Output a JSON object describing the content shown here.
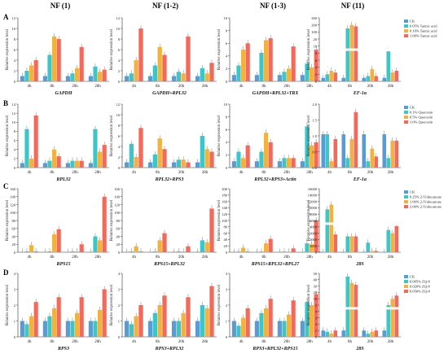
{
  "column_headers": [
    "NF (1)",
    "NF (1-2)",
    "NF (1-3)",
    "NF (11)"
  ],
  "row_labels": [
    "A",
    "B",
    "C",
    "D"
  ],
  "colors": [
    "#5b9bd5",
    "#3ec5c9",
    "#f0b240",
    "#f26a5b"
  ],
  "chart_data": [
    {
      "type": "bar",
      "row": 0,
      "col": 0,
      "xlabel": "GAPDH",
      "ylabel": "Relative expression level",
      "categories": [
        "4h",
        "8h",
        "20h",
        "28h"
      ],
      "ylim": [
        0,
        12
      ],
      "yticks": [
        0,
        2,
        4,
        6,
        8,
        10,
        12
      ],
      "series": [
        {
          "values": [
            1,
            1,
            1,
            1
          ]
        },
        {
          "values": [
            2,
            5,
            1.5,
            2.8
          ]
        },
        {
          "values": [
            3,
            8.5,
            2.5,
            1.8
          ]
        },
        {
          "values": [
            4,
            8,
            6.5,
            2.2
          ]
        }
      ]
    },
    {
      "type": "bar",
      "row": 0,
      "col": 1,
      "xlabel": "GAPDH+RPL32",
      "ylabel": "Relative expression level",
      "categories": [
        "4h",
        "8h",
        "20h",
        "28h"
      ],
      "ylim": [
        0,
        12
      ],
      "yticks": [
        0,
        2,
        4,
        6,
        8,
        10,
        12
      ],
      "series": [
        {
          "values": [
            1,
            1,
            1,
            1
          ]
        },
        {
          "values": [
            1.5,
            3,
            1.8,
            2.5
          ]
        },
        {
          "values": [
            4,
            6.5,
            1.5,
            1.5
          ]
        },
        {
          "values": [
            10,
            5,
            8.5,
            3.5
          ]
        }
      ]
    },
    {
      "type": "bar",
      "row": 0,
      "col": 2,
      "xlabel": "GAPDH+RPL32+TRX",
      "ylabel": "Relative expression level",
      "categories": [
        "4h",
        "8h",
        "20h",
        "28h"
      ],
      "ylim": [
        0,
        10
      ],
      "yticks": [
        0,
        2,
        4,
        6,
        8,
        10
      ],
      "series": [
        {
          "values": [
            1,
            1,
            1,
            1
          ]
        },
        {
          "values": [
            2.5,
            4.5,
            1.5,
            2.8
          ]
        },
        {
          "values": [
            5,
            6.5,
            2,
            2.2
          ]
        },
        {
          "values": [
            6,
            6.8,
            5.5,
            5
          ]
        }
      ]
    },
    {
      "type": "bar",
      "row": 0,
      "col": 3,
      "xlabel": "EF-1α",
      "ylabel": "Relative expression level",
      "categories": [
        "4h",
        "8h",
        "20h",
        "28h"
      ],
      "ylim": [
        0,
        300
      ],
      "broken": true,
      "yticks": [
        "0",
        "2",
        "4",
        "6",
        "8",
        "10",
        "20",
        "100",
        "200",
        "300"
      ],
      "legend": [
        "CK",
        "0.05% Tannic acid",
        "0.10% Tannic acid",
        "1.00% Tannic acid"
      ],
      "series": [
        {
          "values": [
            1,
            1,
            1,
            1
          ]
        },
        {
          "values": [
            2,
            150,
            1.5,
            8.5
          ]
        },
        {
          "values": [
            3,
            200,
            3.5,
            2.5
          ]
        },
        {
          "values": [
            2.5,
            180,
            1.5,
            3
          ]
        }
      ]
    },
    {
      "type": "bar",
      "row": 1,
      "col": 0,
      "xlabel": "RPL32",
      "ylabel": "Relative expression level",
      "categories": [
        "4h",
        "8h",
        "20h",
        "28h"
      ],
      "ylim": [
        0,
        14
      ],
      "yticks": [
        0,
        2,
        4,
        6,
        8,
        10,
        12,
        14
      ],
      "series": [
        {
          "values": [
            1,
            1,
            1,
            1
          ]
        },
        {
          "values": [
            8.5,
            1.5,
            1.5,
            8.5
          ]
        },
        {
          "values": [
            2,
            4,
            1.5,
            3.5
          ]
        },
        {
          "values": [
            11.5,
            2.5,
            1.5,
            5
          ]
        }
      ]
    },
    {
      "type": "bar",
      "row": 1,
      "col": 1,
      "xlabel": "RPL32+RPS3",
      "ylabel": "Relative expression level",
      "categories": [
        "4h",
        "8h",
        "20h",
        "28h"
      ],
      "ylim": [
        0,
        12
      ],
      "yticks": [
        0,
        2,
        4,
        6,
        8,
        10,
        12
      ],
      "series": [
        {
          "values": [
            1,
            1,
            1,
            1
          ]
        },
        {
          "values": [
            4.5,
            2.5,
            1.5,
            6
          ]
        },
        {
          "values": [
            2,
            5.5,
            1.5,
            3.5
          ]
        },
        {
          "values": [
            7.5,
            3.5,
            1,
            3
          ]
        }
      ]
    },
    {
      "type": "bar",
      "row": 1,
      "col": 2,
      "xlabel": "RPL32+RPS3+Actin",
      "ylabel": "Relative expression level",
      "categories": [
        "4h",
        "8h",
        "20h",
        "28h"
      ],
      "ylim": [
        0,
        10
      ],
      "yticks": [
        0,
        2,
        4,
        6,
        8,
        10
      ],
      "series": [
        {
          "values": [
            1,
            1,
            1,
            1
          ]
        },
        {
          "values": [
            2.5,
            2.5,
            1.5,
            6.5
          ]
        },
        {
          "values": [
            1.5,
            5.5,
            1.5,
            3.5
          ]
        },
        {
          "values": [
            3.5,
            4,
            1.5,
            4
          ]
        }
      ]
    },
    {
      "type": "bar",
      "row": 1,
      "col": 3,
      "xlabel": "EF-1α",
      "ylabel": "Relative expression level",
      "categories": [
        "4h",
        "8h",
        "20h",
        "28h"
      ],
      "ylim": [
        0,
        2.0
      ],
      "yticks": [
        "0.0",
        "0.5",
        "1.0",
        "1.5",
        "2.0"
      ],
      "legend": [
        "CK",
        "0.1% Quercetin",
        "0.5% Quercetin",
        "1.0% Quercetin"
      ],
      "series": [
        {
          "values": [
            1.05,
            1.05,
            1.05,
            1.05
          ]
        },
        {
          "values": [
            1.05,
            0.3,
            0.2,
            0.3
          ]
        },
        {
          "values": [
            0.2,
            0.9,
            0.6,
            0.85
          ]
        },
        {
          "values": [
            0.9,
            1.75,
            0.35,
            0.85
          ]
        }
      ]
    },
    {
      "type": "bar",
      "row": 2,
      "col": 0,
      "xlabel": "RPS15",
      "ylabel": "Relative expression level",
      "categories": [
        "4h",
        "8h",
        "20h",
        "28h"
      ],
      "ylim": [
        0,
        160
      ],
      "yticks": [
        0,
        20,
        40,
        60,
        80,
        100,
        120,
        140,
        160
      ],
      "series": [
        {
          "values": [
            1,
            1,
            1,
            1
          ]
        },
        {
          "values": [
            2,
            2,
            2,
            40
          ]
        },
        {
          "values": [
            18,
            45,
            2,
            30
          ]
        },
        {
          "values": [
            2,
            58,
            20,
            140
          ]
        }
      ]
    },
    {
      "type": "bar",
      "row": 2,
      "col": 1,
      "xlabel": "RPS15+RPL32",
      "ylabel": "Relative expression level",
      "categories": [
        "4h",
        "8h",
        "20h",
        "28h"
      ],
      "ylim": [
        0,
        160
      ],
      "yticks": [
        0,
        20,
        40,
        60,
        80,
        100,
        120,
        140,
        160
      ],
      "series": [
        {
          "values": [
            1,
            1,
            1,
            1
          ]
        },
        {
          "values": [
            2,
            2,
            2,
            30
          ]
        },
        {
          "values": [
            15,
            30,
            2,
            25
          ]
        },
        {
          "values": [
            2,
            48,
            15,
            110
          ]
        }
      ]
    },
    {
      "type": "bar",
      "row": 2,
      "col": 2,
      "xlabel": "RPS15+RPL32+RPL27",
      "ylabel": "Relative expression level",
      "categories": [
        "4h",
        "8h",
        "20h",
        "28h"
      ],
      "ylim": [
        0,
        200
      ],
      "yticks": [
        0,
        20,
        40,
        60,
        80,
        100,
        120,
        140,
        160,
        180,
        200
      ],
      "series": [
        {
          "values": [
            1,
            1,
            1,
            1
          ]
        },
        {
          "values": [
            2,
            2,
            2,
            28
          ]
        },
        {
          "values": [
            14,
            28,
            2,
            25
          ]
        },
        {
          "values": [
            2,
            42,
            12,
            100
          ]
        }
      ]
    },
    {
      "type": "bar",
      "row": 2,
      "col": 3,
      "xlabel": "28S",
      "ylabel": "Relative expression level",
      "categories": [
        "4h",
        "8h",
        "20h",
        "28h"
      ],
      "ylim": [
        0,
        16000
      ],
      "broken": true,
      "yticks": [
        "0",
        "1000",
        "2000",
        "3000",
        "4000",
        "6000",
        "8000",
        "10000",
        "12000",
        "14000",
        "16000"
      ],
      "legend": [
        "CK",
        "0.25% 2-Tridecanone",
        "1.00% 2-Tridecanone",
        "2.00% 2-Tridecanone"
      ],
      "series": [
        {
          "values": [
            1,
            1,
            1,
            1
          ]
        },
        {
          "values": [
            9500,
            2500,
            1500,
            3500
          ]
        },
        {
          "values": [
            11000,
            2500,
            200,
            3000
          ]
        },
        {
          "values": [
            2800,
            2500,
            200,
            4200
          ]
        }
      ]
    },
    {
      "type": "bar",
      "row": 3,
      "col": 0,
      "xlabel": "RPS3",
      "ylabel": "Relative expression level",
      "categories": [
        "4h",
        "8h",
        "20h",
        "28h"
      ],
      "ylim": [
        0,
        4
      ],
      "yticks": [
        0,
        1,
        2,
        3,
        4
      ],
      "series": [
        {
          "values": [
            1,
            1,
            1,
            1
          ]
        },
        {
          "values": [
            0.8,
            1.3,
            1,
            1
          ]
        },
        {
          "values": [
            1.3,
            1.8,
            1.5,
            1.7
          ]
        },
        {
          "values": [
            2.2,
            2.5,
            2.5,
            3
          ]
        }
      ]
    },
    {
      "type": "bar",
      "row": 3,
      "col": 1,
      "xlabel": "RPS3+RPL32",
      "ylabel": "Relative expression level",
      "categories": [
        "4h",
        "8h",
        "20h",
        "28h"
      ],
      "ylim": [
        0,
        4
      ],
      "yticks": [
        0,
        1,
        2,
        3,
        4
      ],
      "series": [
        {
          "values": [
            1,
            1,
            1,
            1
          ]
        },
        {
          "values": [
            0.8,
            1.5,
            1,
            2
          ]
        },
        {
          "values": [
            1.3,
            2,
            1.5,
            1.8
          ]
        },
        {
          "values": [
            2,
            2.6,
            2.5,
            3.2
          ]
        }
      ]
    },
    {
      "type": "bar",
      "row": 3,
      "col": 2,
      "xlabel": "RPS3+RPL32+RPS15",
      "ylabel": "Relative expression level",
      "categories": [
        "4h",
        "8h",
        "20h",
        "28h"
      ],
      "ylim": [
        0,
        4
      ],
      "yticks": [
        0,
        1,
        2,
        3,
        4
      ],
      "series": [
        {
          "values": [
            1,
            1,
            1,
            1
          ]
        },
        {
          "values": [
            0.7,
            1.5,
            1,
            2.2
          ]
        },
        {
          "values": [
            1.2,
            1.8,
            1.4,
            2
          ]
        },
        {
          "values": [
            1.8,
            2.4,
            2.3,
            2.7
          ]
        }
      ]
    },
    {
      "type": "bar",
      "row": 3,
      "col": 3,
      "xlabel": "28S",
      "ylabel": "Relative expression level",
      "categories": [
        "4h",
        "8h",
        "20h",
        "28h"
      ],
      "ylim": [
        0,
        50
      ],
      "broken": true,
      "yticks": [
        "0",
        "1",
        "2",
        "3",
        "4",
        "5",
        "10",
        "20",
        "30",
        "40",
        "50"
      ],
      "legend": [
        "CK",
        "0.005% ZQ-8",
        "0.020% ZQ-8",
        "0.050% ZQ-8"
      ],
      "series": [
        {
          "values": [
            1,
            1,
            1,
            1
          ]
        },
        {
          "values": [
            0.8,
            45,
            0.5,
            5
          ]
        },
        {
          "values": [
            0.5,
            35,
            0.8,
            10
          ]
        },
        {
          "values": [
            1,
            32,
            1,
            15
          ]
        }
      ]
    }
  ]
}
